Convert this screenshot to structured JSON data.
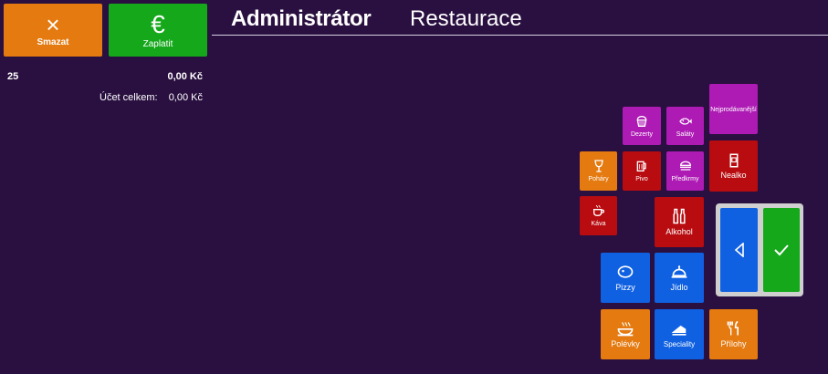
{
  "actions": {
    "delete_label": "Smazat",
    "pay_label": "Zaplatit",
    "euro_symbol": "€",
    "close_symbol": "×"
  },
  "header": {
    "user": "Administrátor",
    "place": "Restaurace"
  },
  "order": {
    "table_number": "25",
    "line_amount": "0,00 Kč",
    "total_label": "Účet celkem:",
    "total_amount": "0,00 Kč"
  },
  "categories": [
    {
      "label": "Nejprodávanější",
      "icon": "none",
      "color": "purple"
    },
    {
      "label": "Dezerty",
      "icon": "cupcake-icon",
      "color": "purple"
    },
    {
      "label": "Saláty",
      "icon": "fish-icon",
      "color": "purple"
    },
    {
      "label": "Poháry",
      "icon": "glass-icon",
      "color": "orange"
    },
    {
      "label": "Pivo",
      "icon": "beer-mug-icon",
      "color": "red"
    },
    {
      "label": "Předkrmy",
      "icon": "burger-icon",
      "color": "purple"
    },
    {
      "label": "Nealko",
      "icon": "soda-icon",
      "color": "red"
    },
    {
      "label": "Káva",
      "icon": "coffee-cup-icon",
      "color": "red"
    },
    {
      "label": "Alkohol",
      "icon": "bottles-icon",
      "color": "red"
    },
    {
      "label": "Pizzy",
      "icon": "pizza-icon",
      "color": "blue"
    },
    {
      "label": "Jídlo",
      "icon": "cloche-icon",
      "color": "blue"
    },
    {
      "label": "Polévky",
      "icon": "soup-icon",
      "color": "orange"
    },
    {
      "label": "Speciality",
      "icon": "cake-icon",
      "color": "blue"
    },
    {
      "label": "Přílohy",
      "icon": "cutlery-icon",
      "color": "orange"
    }
  ],
  "nav": {
    "back_icon": "left-triangle-icon",
    "confirm_icon": "check-icon"
  },
  "colors": {
    "background": "#2a1040",
    "orange": "#e47a10",
    "red": "#b80c10",
    "purple": "#ad1ab4",
    "blue": "#1061e2",
    "green": "#14a81a"
  }
}
